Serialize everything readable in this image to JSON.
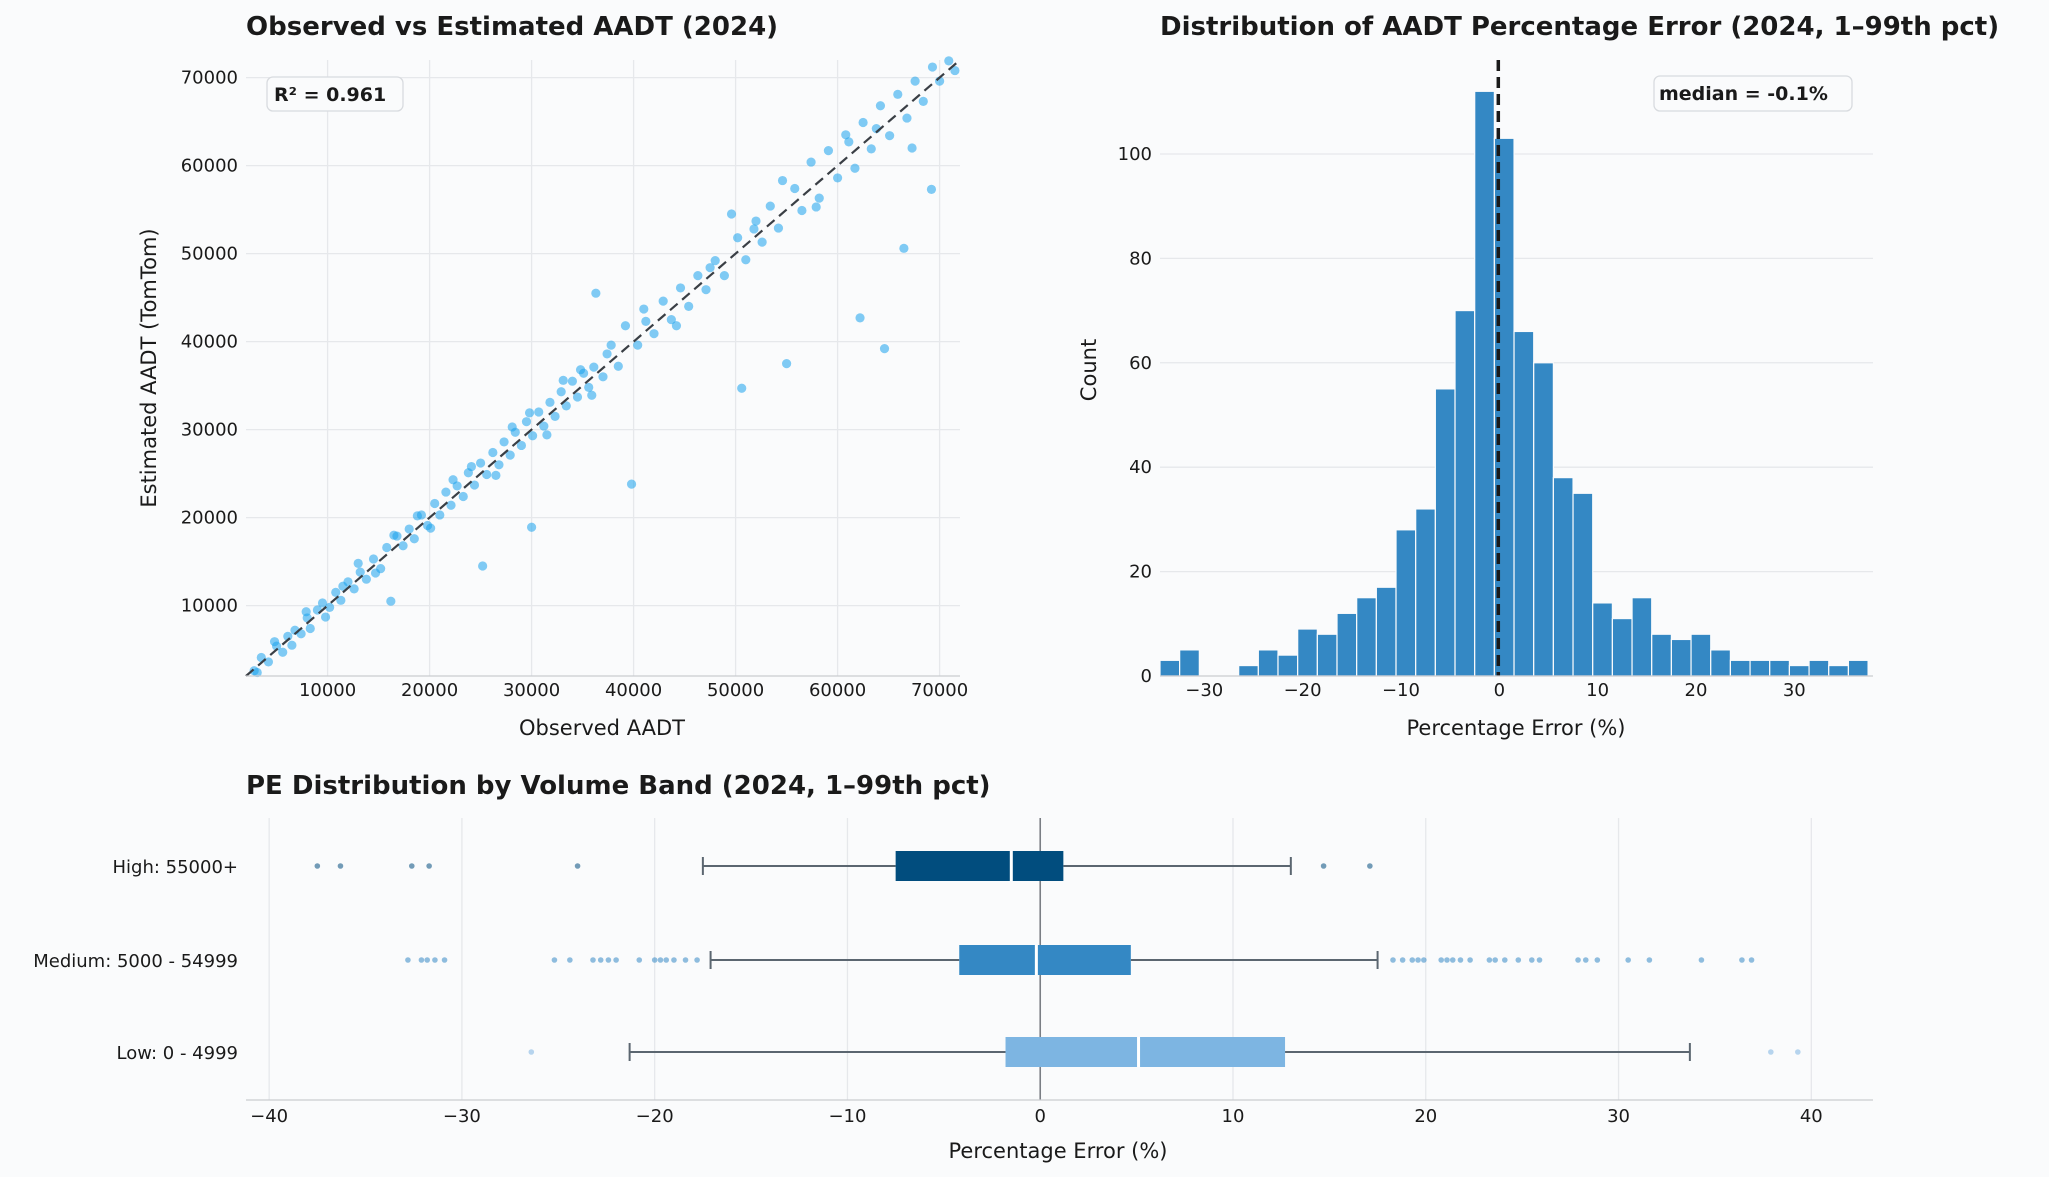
{
  "chart_data": [
    {
      "type": "scatter",
      "title": "Observed vs Estimated AADT (2024)",
      "xlabel": "Observed AADT",
      "ylabel": "Estimated AADT (TomTom)",
      "xlim": [
        2000,
        72000
      ],
      "ylim": [
        2000,
        72000
      ],
      "xticks": [
        10000,
        20000,
        30000,
        40000,
        50000,
        60000,
        70000
      ],
      "yticks": [
        10000,
        20000,
        30000,
        40000,
        50000,
        60000,
        70000
      ],
      "grid": true,
      "reference_line": "y = x (dashed)",
      "annotation": "R² = 0.961",
      "color": "#1aa3ec",
      "points": [
        [
          2800,
          2600
        ],
        [
          3500,
          4100
        ],
        [
          4200,
          3600
        ],
        [
          5000,
          5400
        ],
        [
          5600,
          4700
        ],
        [
          6100,
          6500
        ],
        [
          6800,
          7200
        ],
        [
          7400,
          6800
        ],
        [
          8000,
          8600
        ],
        [
          8300,
          7400
        ],
        [
          9000,
          9500
        ],
        [
          9500,
          10300
        ],
        [
          10200,
          9800
        ],
        [
          10800,
          11500
        ],
        [
          11300,
          10600
        ],
        [
          12000,
          12700
        ],
        [
          12600,
          11900
        ],
        [
          13200,
          13800
        ],
        [
          13800,
          13000
        ],
        [
          14500,
          15300
        ],
        [
          15200,
          14200
        ],
        [
          15800,
          16600
        ],
        [
          16200,
          10500
        ],
        [
          16800,
          17900
        ],
        [
          17400,
          16800
        ],
        [
          18000,
          18700
        ],
        [
          18500,
          17600
        ],
        [
          19200,
          20300
        ],
        [
          19800,
          19100
        ],
        [
          20500,
          21600
        ],
        [
          21000,
          20300
        ],
        [
          21600,
          22900
        ],
        [
          22100,
          21400
        ],
        [
          22700,
          23600
        ],
        [
          23300,
          22400
        ],
        [
          23800,
          25100
        ],
        [
          24400,
          23700
        ],
        [
          25000,
          26200
        ],
        [
          25200,
          14500
        ],
        [
          25600,
          24900
        ],
        [
          26200,
          27400
        ],
        [
          26800,
          26000
        ],
        [
          27300,
          28600
        ],
        [
          27900,
          27100
        ],
        [
          28400,
          29700
        ],
        [
          29000,
          28200
        ],
        [
          29500,
          30900
        ],
        [
          30000,
          18900
        ],
        [
          30100,
          29300
        ],
        [
          30700,
          32000
        ],
        [
          31200,
          30400
        ],
        [
          31800,
          33100
        ],
        [
          32300,
          31500
        ],
        [
          32900,
          34300
        ],
        [
          33400,
          32700
        ],
        [
          34000,
          35500
        ],
        [
          34500,
          33700
        ],
        [
          35100,
          36400
        ],
        [
          35600,
          34800
        ],
        [
          36100,
          37100
        ],
        [
          36300,
          45500
        ],
        [
          37000,
          36000
        ],
        [
          37800,
          39600
        ],
        [
          38500,
          37200
        ],
        [
          39200,
          41800
        ],
        [
          39800,
          23800
        ],
        [
          40400,
          39600
        ],
        [
          41200,
          42300
        ],
        [
          42000,
          40900
        ],
        [
          42900,
          44600
        ],
        [
          43700,
          42500
        ],
        [
          44600,
          46100
        ],
        [
          45400,
          44000
        ],
        [
          46300,
          47500
        ],
        [
          47100,
          45900
        ],
        [
          48000,
          49200
        ],
        [
          48900,
          47500
        ],
        [
          49600,
          54500
        ],
        [
          50200,
          51800
        ],
        [
          50600,
          34700
        ],
        [
          51000,
          49300
        ],
        [
          51800,
          52800
        ],
        [
          52600,
          51300
        ],
        [
          53400,
          55400
        ],
        [
          54200,
          52900
        ],
        [
          55000,
          37500
        ],
        [
          55800,
          57400
        ],
        [
          56500,
          54900
        ],
        [
          57400,
          60400
        ],
        [
          58200,
          56300
        ],
        [
          59100,
          61700
        ],
        [
          60000,
          58600
        ],
        [
          60800,
          63500
        ],
        [
          61700,
          59700
        ],
        [
          62200,
          42700
        ],
        [
          62500,
          64900
        ],
        [
          63300,
          61900
        ],
        [
          64200,
          66800
        ],
        [
          64600,
          39200
        ],
        [
          65100,
          63400
        ],
        [
          65900,
          68100
        ],
        [
          66500,
          50600
        ],
        [
          66800,
          65400
        ],
        [
          67600,
          69600
        ],
        [
          68400,
          67300
        ],
        [
          69200,
          57300
        ],
        [
          69300,
          71200
        ],
        [
          70000,
          69600
        ],
        [
          70900,
          71900
        ],
        [
          71500,
          70800
        ],
        [
          3100,
          2400
        ],
        [
          4800,
          5900
        ],
        [
          6500,
          5500
        ],
        [
          7900,
          9300
        ],
        [
          9800,
          8700
        ],
        [
          11500,
          12200
        ],
        [
          13000,
          14800
        ],
        [
          14700,
          13700
        ],
        [
          16500,
          18000
        ],
        [
          18800,
          20200
        ],
        [
          20100,
          18800
        ],
        [
          22300,
          24300
        ],
        [
          24100,
          25800
        ],
        [
          26500,
          24800
        ],
        [
          28100,
          30300
        ],
        [
          29800,
          31900
        ],
        [
          31500,
          29400
        ],
        [
          33100,
          35600
        ],
        [
          34800,
          36800
        ],
        [
          35900,
          33900
        ],
        [
          37400,
          38600
        ],
        [
          41000,
          43700
        ],
        [
          44200,
          41800
        ],
        [
          47500,
          48400
        ],
        [
          52000,
          53700
        ],
        [
          54600,
          58300
        ],
        [
          57900,
          55300
        ],
        [
          61100,
          62700
        ],
        [
          63800,
          64200
        ],
        [
          67300,
          62000
        ]
      ]
    },
    {
      "type": "bar",
      "title": "Distribution of AADT Percentage Error (2024, 1–99th pct)",
      "xlabel": "Percentage Error (%)",
      "ylabel": "Count",
      "xlim": [
        -34.5,
        38
      ],
      "ylim": [
        0,
        118
      ],
      "xticks": [
        -30,
        -20,
        -10,
        0,
        10,
        20,
        30
      ],
      "yticks": [
        0,
        20,
        40,
        60,
        80,
        100
      ],
      "grid": true,
      "bin_start": -34.5,
      "bin_width": 2,
      "counts": [
        3,
        5,
        0,
        0,
        2,
        5,
        4,
        9,
        8,
        12,
        15,
        17,
        28,
        32,
        55,
        70,
        112,
        103,
        66,
        60,
        38,
        35,
        14,
        11,
        15,
        8,
        7,
        8,
        5,
        3,
        3,
        3,
        2,
        3,
        2,
        3
      ],
      "median_line": -0.1,
      "annotation": "median = -0.1%",
      "color": "#3488c4"
    },
    {
      "type": "box",
      "title": "PE Distribution by Volume Band (2024, 1–99th pct)",
      "xlabel": "Percentage Error (%)",
      "xlim": [
        -41.2,
        43.2
      ],
      "xticks": [
        -40,
        -30,
        -20,
        -10,
        0,
        10,
        20,
        30,
        40
      ],
      "grid": true,
      "reference_line": 0,
      "bands": [
        {
          "label": "High: 55000+",
          "color": "#014d7e",
          "whisker_low": -17.5,
          "q1": -7.5,
          "median": -1.5,
          "q3": 1.2,
          "whisker_high": 13.0,
          "outliers": [
            -37.5,
            -36.3,
            -32.6,
            -31.7,
            -24.0,
            14.7,
            17.1
          ]
        },
        {
          "label": "Medium: 5000 - 54999",
          "color": "#3488c4",
          "whisker_low": -17.1,
          "q1": -4.2,
          "median": -0.2,
          "q3": 4.7,
          "whisker_high": 17.5,
          "outliers": [
            -32.8,
            -32.1,
            -31.8,
            -31.4,
            -30.9,
            -25.2,
            -24.4,
            -23.2,
            -22.8,
            -22.4,
            -22.0,
            -20.8,
            -20.0,
            -19.7,
            -19.4,
            -19.0,
            -18.4,
            -17.8,
            18.3,
            18.8,
            19.3,
            19.6,
            19.9,
            20.8,
            21.1,
            21.4,
            21.8,
            22.3,
            23.3,
            23.6,
            24.1,
            24.8,
            25.5,
            25.9,
            27.9,
            28.3,
            28.9,
            30.5,
            31.6,
            34.3,
            36.4,
            36.9
          ]
        },
        {
          "label": "Low: 0 - 4999",
          "color": "#7db5e2",
          "whisker_low": -21.3,
          "q1": -1.8,
          "median": 5.1,
          "q3": 12.7,
          "whisker_high": 33.7,
          "outliers": [
            -26.4,
            37.9,
            39.3
          ]
        }
      ]
    }
  ]
}
